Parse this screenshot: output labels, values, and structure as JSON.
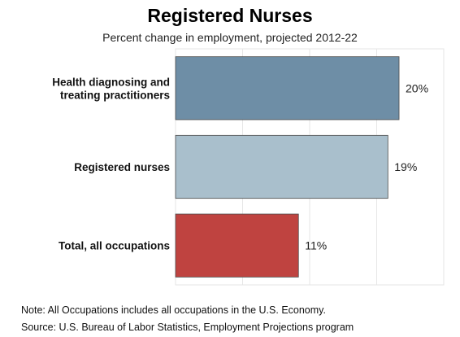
{
  "chart_data": {
    "type": "bar",
    "orientation": "horizontal",
    "title": "Registered Nurses",
    "subtitle": "Percent change in employment, projected 2012-22",
    "categories": [
      "Health diagnosing and treating practitioners",
      "Registered nurses",
      "Total, all occupations"
    ],
    "category_label_lines": [
      [
        "Health diagnosing and",
        "treating practitioners"
      ],
      [
        "Registered nurses"
      ],
      [
        "Total, all occupations"
      ]
    ],
    "values": [
      20,
      19,
      11
    ],
    "data_labels": [
      "20%",
      "19%",
      "11%"
    ],
    "colors": [
      "#6e8ea6",
      "#a9bfcc",
      "#bf4340"
    ],
    "xlim": [
      0,
      24
    ],
    "grid": true,
    "xlabel": "",
    "ylabel": ""
  },
  "notes": {
    "note": "Note: All Occupations includes all occupations in the U.S. Economy.",
    "source": "Source: U.S. Bureau of Labor Statistics, Employment Projections program"
  }
}
